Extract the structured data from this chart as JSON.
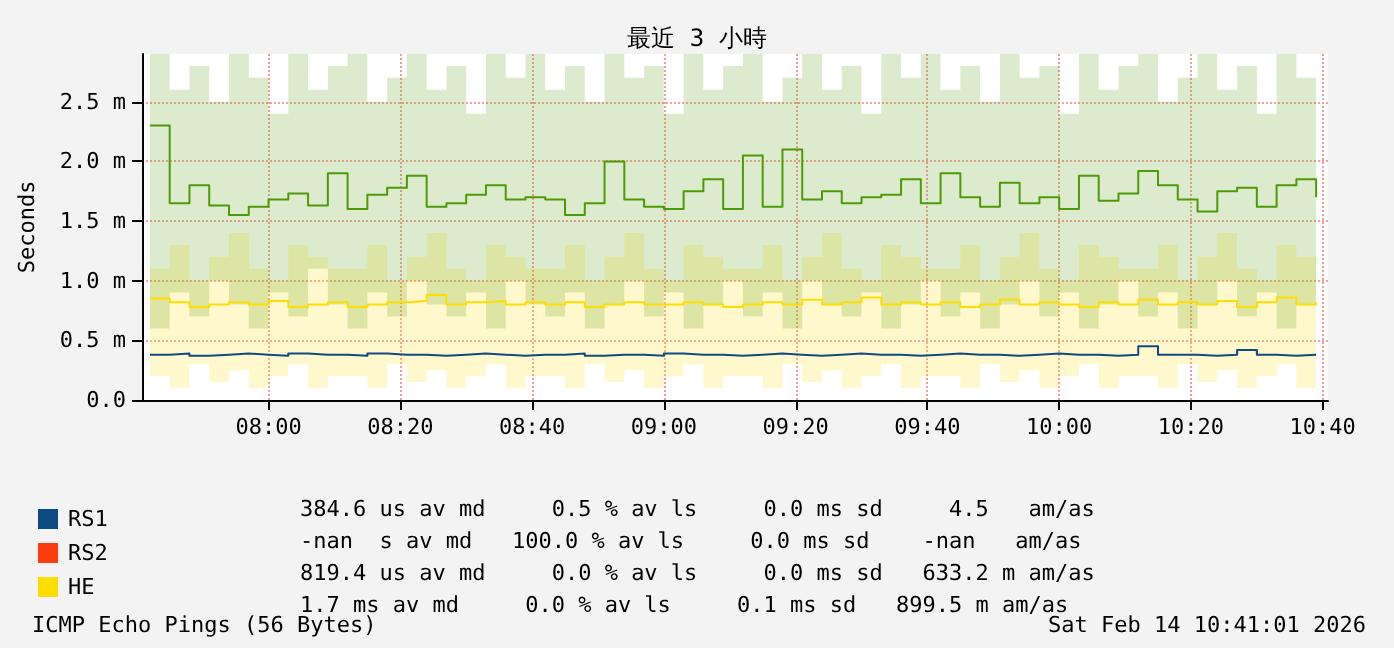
{
  "chart_data": {
    "type": "step",
    "title": "最近 3 小時",
    "ylabel": "Seconds",
    "x": [
      7.7,
      7.75,
      7.8,
      7.85,
      7.9,
      7.95,
      8.0,
      8.05,
      8.1,
      8.15,
      8.2,
      8.25,
      8.3,
      8.35,
      8.4,
      8.45,
      8.5,
      8.55,
      8.6,
      8.65,
      8.7,
      8.75,
      8.8,
      8.85,
      8.9,
      8.95,
      9.0,
      9.05,
      9.1,
      9.15,
      9.2,
      9.25,
      9.3,
      9.35,
      9.4,
      9.45,
      9.5,
      9.55,
      9.6,
      9.65,
      9.7,
      9.75,
      9.8,
      9.85,
      9.9,
      9.95,
      10.0,
      10.05,
      10.1,
      10.15,
      10.2,
      10.25,
      10.3,
      10.35,
      10.4,
      10.45,
      10.5,
      10.55,
      10.6,
      10.65
    ],
    "series": [
      {
        "name": "RS1",
        "color": "#0f4a82",
        "values": [
          0.38,
          0.39,
          0.37,
          0.38,
          0.39,
          0.38,
          0.37,
          0.39,
          0.38,
          0.38,
          0.37,
          0.39,
          0.38,
          0.38,
          0.37,
          0.38,
          0.39,
          0.38,
          0.37,
          0.38,
          0.38,
          0.39,
          0.37,
          0.38,
          0.38,
          0.37,
          0.39,
          0.38,
          0.38,
          0.37,
          0.38,
          0.39,
          0.38,
          0.37,
          0.38,
          0.39,
          0.38,
          0.38,
          0.37,
          0.38,
          0.39,
          0.38,
          0.38,
          0.37,
          0.38,
          0.39,
          0.38,
          0.38,
          0.37,
          0.38,
          0.45,
          0.38,
          0.38,
          0.37,
          0.38,
          0.42,
          0.38,
          0.37,
          0.38,
          0.38
        ]
      },
      {
        "name": "RS2",
        "color": "#ff3b0f",
        "values": [
          null,
          null,
          null,
          null,
          null,
          null,
          null,
          null,
          null,
          null,
          null,
          null,
          null,
          null,
          null,
          null,
          null,
          null,
          null,
          null,
          null,
          null,
          null,
          null,
          null,
          null,
          null,
          null,
          null,
          null,
          null,
          null,
          null,
          null,
          null,
          null,
          null,
          null,
          null,
          null,
          null,
          null,
          null,
          null,
          null,
          null,
          null,
          null,
          null,
          null,
          null,
          null,
          null,
          null,
          null,
          null,
          null,
          null,
          null,
          null
        ]
      },
      {
        "name": "HE",
        "color": "#ffdd00",
        "values": [
          0.85,
          0.82,
          0.78,
          0.8,
          0.82,
          0.8,
          0.83,
          0.78,
          0.8,
          0.82,
          0.78,
          0.8,
          0.82,
          0.83,
          0.88,
          0.8,
          0.82,
          0.83,
          0.8,
          0.82,
          0.8,
          0.82,
          0.78,
          0.8,
          0.82,
          0.8,
          0.8,
          0.82,
          0.8,
          0.78,
          0.8,
          0.82,
          0.8,
          0.84,
          0.8,
          0.82,
          0.86,
          0.8,
          0.82,
          0.8,
          0.82,
          0.78,
          0.8,
          0.84,
          0.8,
          0.82,
          0.8,
          0.78,
          0.82,
          0.8,
          0.84,
          0.8,
          0.82,
          0.8,
          0.83,
          0.78,
          0.82,
          0.86,
          0.8,
          0.82
        ],
        "lower": [
          0.2,
          0.1,
          0.3,
          0.15,
          0.25,
          0.1,
          0.2,
          0.3,
          0.1,
          0.2,
          0.2,
          0.1,
          0.3,
          0.15,
          0.25,
          0.1,
          0.2,
          0.3,
          0.1,
          0.2,
          0.2,
          0.1,
          0.3,
          0.15,
          0.25,
          0.1,
          0.2,
          0.3,
          0.1,
          0.2,
          0.2,
          0.1,
          0.3,
          0.15,
          0.25,
          0.1,
          0.2,
          0.3,
          0.1,
          0.2,
          0.2,
          0.1,
          0.3,
          0.15,
          0.25,
          0.1,
          0.2,
          0.3,
          0.1,
          0.2,
          0.2,
          0.1,
          0.3,
          0.15,
          0.25,
          0.1,
          0.2,
          0.3,
          0.1,
          0.2
        ],
        "upper": [
          1.1,
          1.3,
          1.0,
          1.2,
          1.4,
          1.1,
          1.0,
          1.3,
          1.2,
          1.1,
          1.1,
          1.3,
          1.0,
          1.2,
          1.4,
          1.1,
          1.0,
          1.3,
          1.2,
          1.1,
          1.1,
          1.3,
          1.0,
          1.2,
          1.4,
          1.1,
          1.0,
          1.3,
          1.2,
          1.1,
          1.1,
          1.3,
          1.0,
          1.2,
          1.4,
          1.1,
          1.0,
          1.3,
          1.2,
          1.1,
          1.1,
          1.3,
          1.0,
          1.2,
          1.4,
          1.1,
          1.0,
          1.3,
          1.2,
          1.1,
          1.1,
          1.3,
          1.0,
          1.2,
          1.4,
          1.1,
          1.0,
          1.3,
          1.2,
          1.1
        ]
      },
      {
        "color": "#4e9a06",
        "values": [
          2.3,
          1.65,
          1.8,
          1.63,
          1.55,
          1.62,
          1.68,
          1.73,
          1.63,
          1.9,
          1.6,
          1.72,
          1.78,
          1.88,
          1.62,
          1.65,
          1.72,
          1.8,
          1.68,
          1.7,
          1.68,
          1.55,
          1.65,
          2.0,
          1.68,
          1.62,
          1.6,
          1.75,
          1.85,
          1.6,
          2.05,
          1.62,
          2.1,
          1.68,
          1.75,
          1.65,
          1.7,
          1.72,
          1.85,
          1.65,
          1.9,
          1.7,
          1.62,
          1.82,
          1.65,
          1.7,
          1.6,
          1.88,
          1.67,
          1.73,
          1.92,
          1.8,
          1.68,
          1.58,
          1.75,
          1.78,
          1.62,
          1.8,
          1.85,
          1.7
        ],
        "lower": [
          0.6,
          0.9,
          0.7,
          1.0,
          0.8,
          0.6,
          0.9,
          0.7,
          1.1,
          0.8,
          0.6,
          0.9,
          0.7,
          1.0,
          0.8,
          0.7,
          0.9,
          0.6,
          1.0,
          0.8,
          0.7,
          0.9,
          0.6,
          0.8,
          1.0,
          0.7,
          0.9,
          0.6,
          0.8,
          1.0,
          0.7,
          0.9,
          0.6,
          1.0,
          0.8,
          0.7,
          0.9,
          0.6,
          0.8,
          1.0,
          0.7,
          0.9,
          0.6,
          0.8,
          1.0,
          0.7,
          0.9,
          0.6,
          0.8,
          1.0,
          0.7,
          0.9,
          0.6,
          0.8,
          1.0,
          0.7,
          0.9,
          0.6,
          0.8,
          0.9
        ],
        "upper": [
          2.9,
          2.6,
          2.8,
          2.5,
          2.9,
          2.7,
          2.4,
          2.9,
          2.6,
          2.8,
          2.9,
          2.5,
          2.7,
          2.9,
          2.6,
          2.8,
          2.4,
          2.9,
          2.7,
          2.9,
          2.6,
          2.8,
          2.5,
          2.9,
          2.7,
          2.8,
          2.4,
          2.9,
          2.6,
          2.8,
          2.9,
          2.5,
          2.7,
          2.9,
          2.6,
          2.8,
          2.4,
          2.9,
          2.7,
          2.9,
          2.6,
          2.8,
          2.5,
          2.9,
          2.7,
          2.8,
          2.4,
          2.9,
          2.6,
          2.8,
          2.9,
          2.5,
          2.7,
          2.9,
          2.6,
          2.8,
          2.4,
          2.9,
          2.7,
          2.8
        ]
      }
    ],
    "xlim": [
      7.68,
      10.68
    ],
    "xticks": [
      {
        "value": 8,
        "label": "08:00"
      },
      {
        "value": 8.3333,
        "label": "08:20"
      },
      {
        "value": 8.6667,
        "label": "08:40"
      },
      {
        "value": 9,
        "label": "09:00"
      },
      {
        "value": 9.3333,
        "label": "09:20"
      },
      {
        "value": 9.6667,
        "label": "09:40"
      },
      {
        "value": 10,
        "label": "10:00"
      },
      {
        "value": 10.3333,
        "label": "10:20"
      },
      {
        "value": 10.6667,
        "label": "10:40"
      }
    ],
    "ylim": [
      0,
      2.9
    ],
    "yticks": [
      {
        "value": 0,
        "label": "0.0"
      },
      {
        "value": 0.5,
        "label": "0.5 m"
      },
      {
        "value": 1,
        "label": "1.0 m"
      },
      {
        "value": 1.5,
        "label": "1.5 m"
      },
      {
        "value": 2,
        "label": "2.0 m"
      },
      {
        "value": 2.5,
        "label": "2.5 m"
      }
    ],
    "grid": true,
    "legend": "bottom left",
    "annotations": [
      "384.6 us av md     0.5 % av ls     0.0 ms sd     4.5   am/as",
      "-nan  s av md   100.0 % av ls     0.0 ms sd    -nan   am/as",
      "819.4 us av md     0.0 % av ls     0.0 ms sd   633.2 m am/as",
      "1.7 ms av md     0.0 % av ls     0.1 ms sd   899.5 m am/as",
      "ICMP Echo Pings (56 Bytes)",
      "Sat Feb 14 10:41:01 2026"
    ]
  }
}
